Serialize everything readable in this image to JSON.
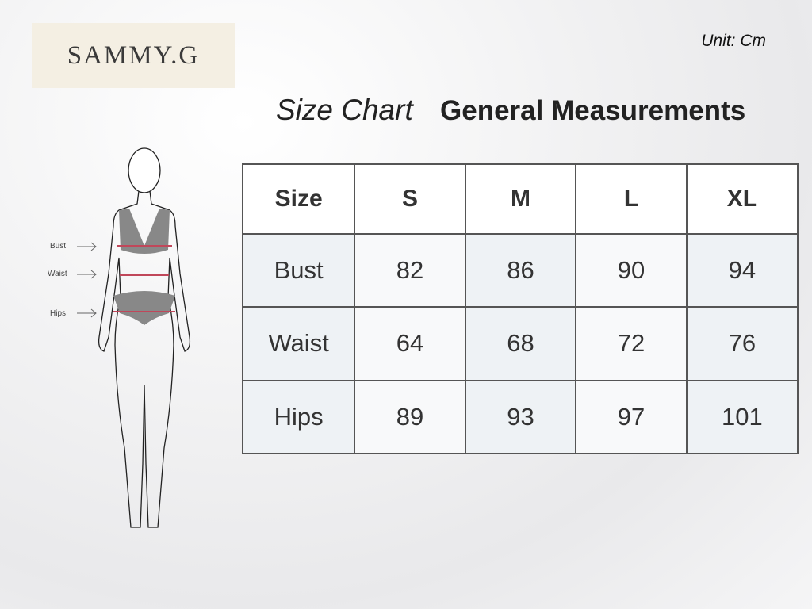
{
  "brand": "SAMMY.G",
  "unit": "Unit: Cm",
  "title": {
    "italic": "Size Chart",
    "bold": "General Measurements"
  },
  "figure": {
    "labels": [
      "Bust",
      "Waist",
      "Hips"
    ],
    "line_color": "#c0475a"
  },
  "table": {
    "header": [
      "Size",
      "S",
      "M",
      "L",
      "XL"
    ],
    "rows": [
      {
        "label": "Bust",
        "values": [
          "82",
          "86",
          "90",
          "94"
        ]
      },
      {
        "label": "Waist",
        "values": [
          "64",
          "68",
          "72",
          "76"
        ]
      },
      {
        "label": "Hips",
        "values": [
          "89",
          "93",
          "97",
          "101"
        ]
      }
    ]
  }
}
